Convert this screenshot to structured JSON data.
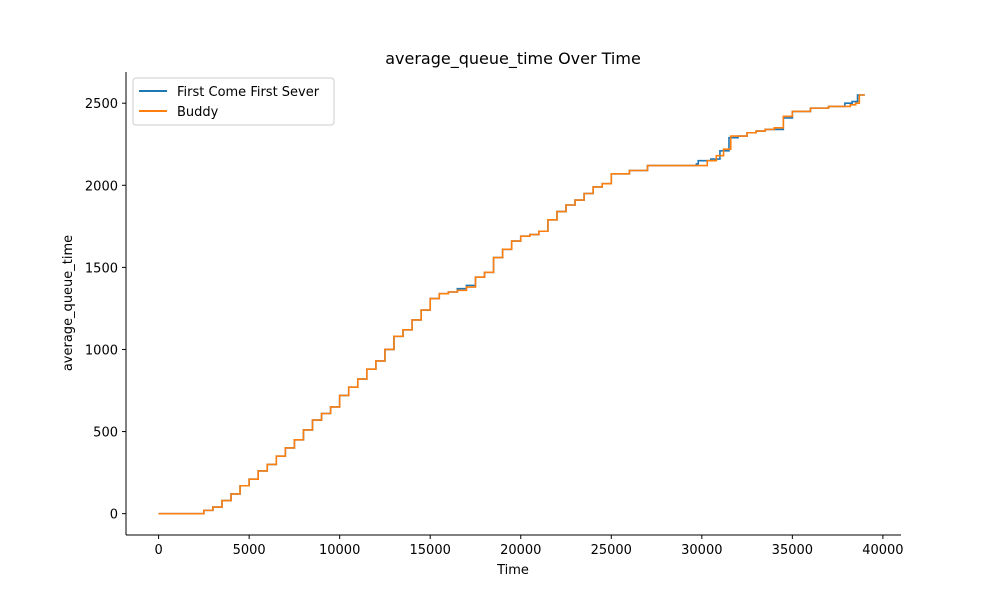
{
  "chart_data": {
    "type": "line",
    "title": "average_queue_time Over Time",
    "xlabel": "Time",
    "ylabel": "average_queue_time",
    "xlim": [
      -1800,
      41000
    ],
    "ylim": [
      -130,
      2690
    ],
    "xticks": [
      0,
      5000,
      10000,
      15000,
      20000,
      25000,
      30000,
      35000,
      40000
    ],
    "yticks": [
      0,
      500,
      1000,
      1500,
      2000,
      2500
    ],
    "grid": false,
    "legend_position": "upper-left",
    "series": [
      {
        "name": "First Come First Sever",
        "color": "#1f77b4",
        "x": [
          0,
          1700,
          2500,
          3000,
          3500,
          4000,
          4500,
          5000,
          5500,
          6000,
          6500,
          7000,
          7500,
          8000,
          8500,
          9000,
          9500,
          10000,
          10500,
          11000,
          11500,
          12000,
          12500,
          13000,
          13500,
          14000,
          14500,
          15000,
          15500,
          16000,
          16500,
          17000,
          17500,
          18000,
          18500,
          19000,
          19500,
          20000,
          20500,
          21000,
          21500,
          22000,
          22500,
          23000,
          23500,
          24000,
          24500,
          25000,
          26000,
          27000,
          28000,
          29000,
          29700,
          29800,
          30500,
          31000,
          31500,
          32000,
          32500,
          33000,
          33500,
          34000,
          34500,
          35000,
          35500,
          36000,
          37000,
          37900,
          38300,
          38600,
          39000
        ],
        "y": [
          0,
          0,
          20,
          40,
          80,
          120,
          170,
          210,
          260,
          300,
          350,
          400,
          450,
          510,
          570,
          610,
          650,
          720,
          770,
          820,
          880,
          930,
          1000,
          1080,
          1120,
          1180,
          1240,
          1310,
          1340,
          1350,
          1370,
          1390,
          1440,
          1470,
          1560,
          1610,
          1660,
          1690,
          1700,
          1720,
          1790,
          1840,
          1880,
          1910,
          1950,
          1990,
          2010,
          2070,
          2090,
          2120,
          2120,
          2120,
          2130,
          2150,
          2160,
          2210,
          2290,
          2300,
          2320,
          2330,
          2340,
          2340,
          2410,
          2450,
          2450,
          2470,
          2480,
          2500,
          2510,
          2550,
          2550
        ]
      },
      {
        "name": "Buddy",
        "color": "#ff7f0e",
        "x": [
          0,
          1700,
          2500,
          3000,
          3500,
          4000,
          4500,
          5000,
          5500,
          6000,
          6500,
          7000,
          7500,
          8000,
          8500,
          9000,
          9500,
          10000,
          10500,
          11000,
          11500,
          12000,
          12500,
          13000,
          13500,
          14000,
          14500,
          15000,
          15500,
          16000,
          16500,
          17000,
          17500,
          18000,
          18500,
          19000,
          19500,
          20000,
          20500,
          21000,
          21500,
          22000,
          22500,
          23000,
          23500,
          24000,
          24500,
          25000,
          26000,
          27000,
          28000,
          29000,
          29700,
          30300,
          30800,
          31200,
          31600,
          32000,
          32500,
          33000,
          33500,
          34000,
          34500,
          35000,
          35500,
          36000,
          37000,
          38200,
          38500,
          38700,
          39000
        ],
        "y": [
          0,
          0,
          20,
          40,
          80,
          120,
          170,
          210,
          260,
          300,
          350,
          400,
          450,
          510,
          570,
          610,
          650,
          720,
          770,
          820,
          880,
          930,
          1000,
          1080,
          1120,
          1180,
          1240,
          1310,
          1340,
          1350,
          1360,
          1380,
          1440,
          1470,
          1560,
          1610,
          1660,
          1690,
          1700,
          1720,
          1790,
          1840,
          1880,
          1910,
          1950,
          1990,
          2010,
          2070,
          2090,
          2120,
          2120,
          2120,
          2120,
          2150,
          2180,
          2220,
          2300,
          2300,
          2320,
          2330,
          2340,
          2350,
          2420,
          2450,
          2450,
          2470,
          2480,
          2490,
          2500,
          2550,
          2550
        ]
      }
    ]
  }
}
